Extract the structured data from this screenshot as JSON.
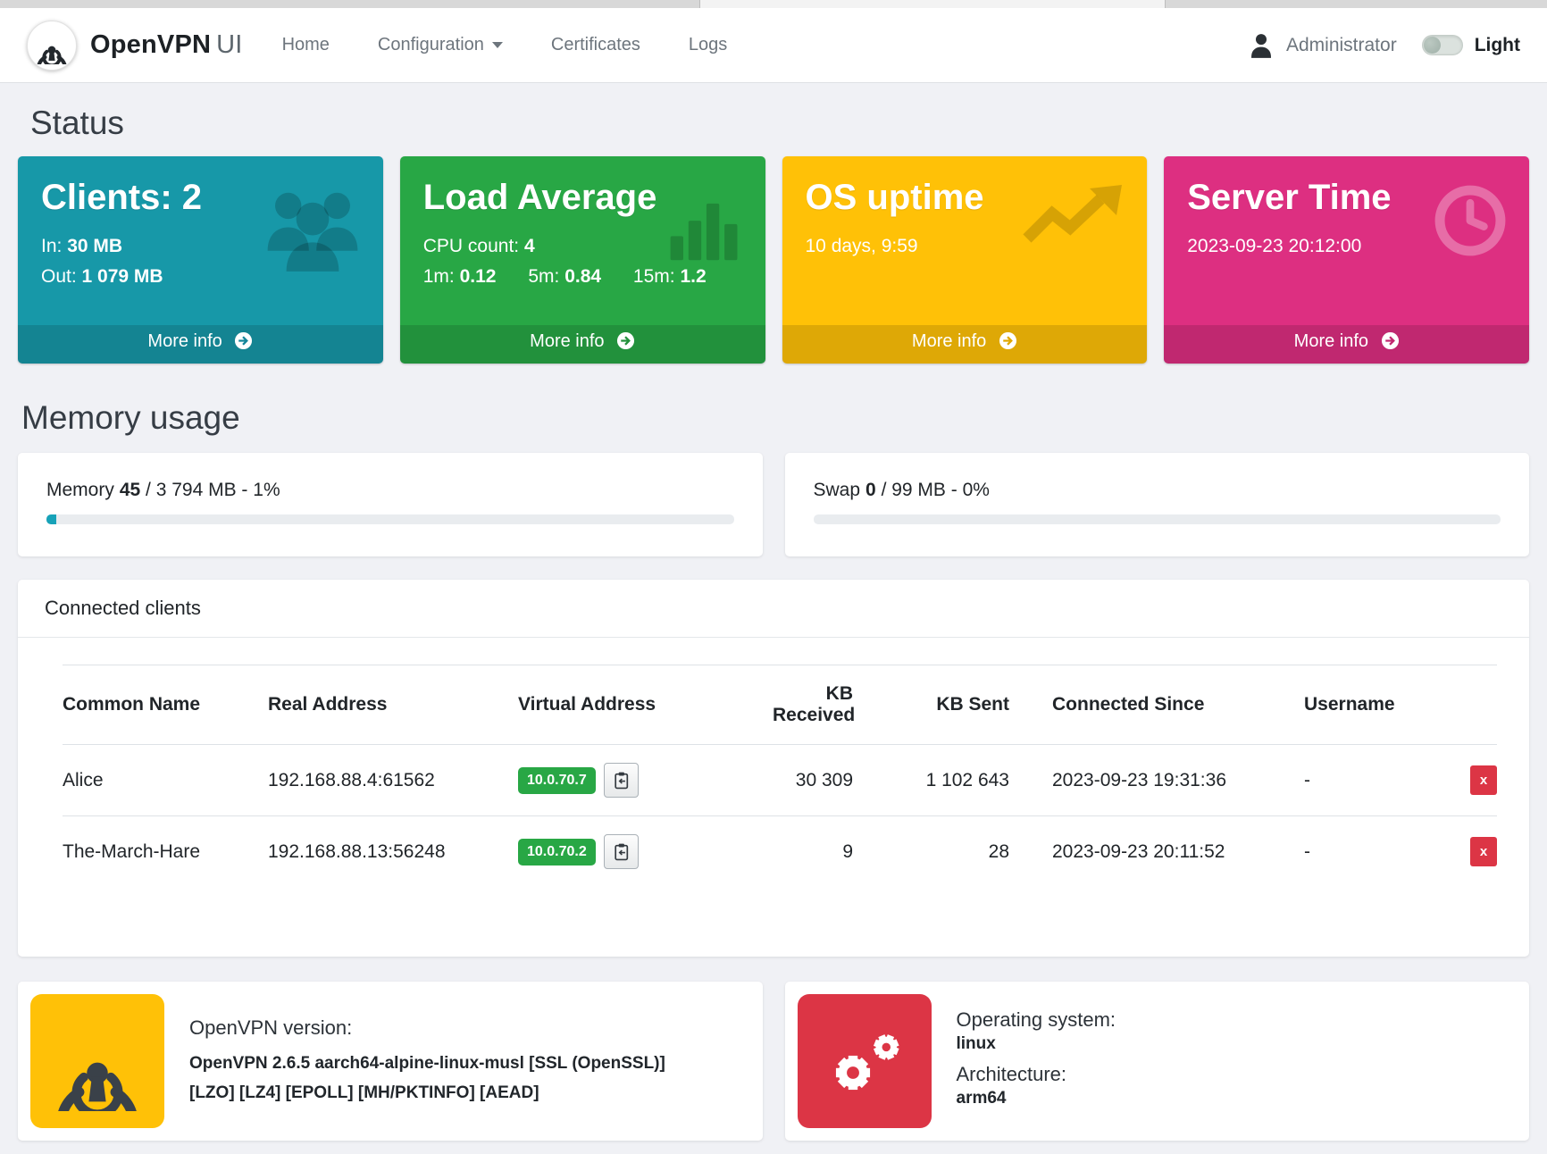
{
  "navbar": {
    "brand_bold": "OpenVPN",
    "brand_light": "UI",
    "links": {
      "home": "Home",
      "configuration": "Configuration",
      "certificates": "Certificates",
      "logs": "Logs"
    },
    "user_label": "Administrator",
    "theme_label": "Light"
  },
  "status": {
    "heading": "Status",
    "more_info_label": "More info",
    "cards": {
      "clients": {
        "title": "Clients: 2",
        "in_label": "In:",
        "in_value": "30 MB",
        "out_label": "Out:",
        "out_value": "1 079 MB",
        "color": "#1798a8",
        "icon": "users-icon"
      },
      "load": {
        "title": "Load Average",
        "cpu_label": "CPU count:",
        "cpu_value": "4",
        "m1_label": "1m:",
        "m1_value": "0.12",
        "m5_label": "5m:",
        "m5_value": "0.84",
        "m15_label": "15m:",
        "m15_value": "1.2",
        "color": "#28a745",
        "icon": "bar-chart-icon"
      },
      "uptime": {
        "title": "OS uptime",
        "value": "10 days, 9:59",
        "color": "#ffc107",
        "icon": "trend-up-icon"
      },
      "server_time": {
        "title": "Server Time",
        "value": "2023-09-23 20:12:00",
        "color": "#dd2f81",
        "icon": "clock-icon"
      }
    }
  },
  "memory": {
    "heading": "Memory usage",
    "memory_card": {
      "label": "Memory",
      "value": "45",
      "rest": "/ 3 794 MB - 1%",
      "percent": 1.3
    },
    "swap_card": {
      "label": "Swap",
      "value": "0",
      "rest": "/ 99 MB - 0%",
      "percent": 0
    }
  },
  "clients_table": {
    "title": "Connected clients",
    "columns": {
      "common_name": "Common Name",
      "real_address": "Real Address",
      "virtual_address": "Virtual Address",
      "kb_received": "KB Received",
      "kb_sent": "KB Sent",
      "connected_since": "Connected Since",
      "username": "Username"
    },
    "rows": [
      {
        "common_name": "Alice",
        "real_address": "192.168.88.4:61562",
        "virtual_address": "10.0.70.7",
        "kb_received": "30 309",
        "kb_sent": "1 102 643",
        "connected_since": "2023-09-23 19:31:36",
        "username": "-",
        "kill_label": "x"
      },
      {
        "common_name": "The-March-Hare",
        "real_address": "192.168.88.13:56248",
        "virtual_address": "10.0.70.2",
        "kb_received": "9",
        "kb_sent": "28",
        "connected_since": "2023-09-23 20:11:52",
        "username": "-",
        "kill_label": "x"
      }
    ]
  },
  "footer_cards": {
    "openvpn": {
      "label": "OpenVPN version:",
      "value": "OpenVPN 2.6.5 aarch64-alpine-linux-musl [SSL (OpenSSL)] [LZO] [LZ4] [EPOLL] [MH/PKTINFO] [AEAD]"
    },
    "os": {
      "label": "Operating system:",
      "value": "linux",
      "arch_label": "Architecture:",
      "arch_value": "arm64"
    }
  }
}
